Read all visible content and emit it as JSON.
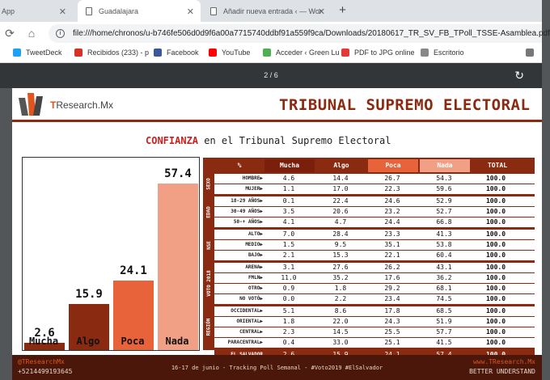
{
  "browser": {
    "tabs": [
      {
        "title": "App"
      },
      {
        "title": "Guadalajara"
      },
      {
        "title": "Añadir nueva entrada ‹ — Wor"
      }
    ],
    "url": "file:///home/chronos/u-b746fe506d0d9f6a00a7715740ddbf91a559f9ca/Downloads/20180617_TR_SV_FB_TPoll_TSSE-Asamblea.pdf",
    "bookmarks": [
      {
        "label": "TweetDeck",
        "color": "#1da1f2"
      },
      {
        "label": "Recibidos (233) - p",
        "color": "#d93025"
      },
      {
        "label": "Facebook",
        "color": "#3b5998"
      },
      {
        "label": "YouTube",
        "color": "#ff0000"
      },
      {
        "label": "Acceder ‹ Green Lu",
        "color": "#4caf50"
      },
      {
        "label": "PDF to JPG online",
        "color": "#e53935"
      },
      {
        "label": "Escritorio",
        "color": "#888888"
      }
    ]
  },
  "pdf": {
    "page_indicator": "2 / 6"
  },
  "slide": {
    "logo_text_a": "T",
    "logo_text_b": "Research.Mx",
    "header_title": "TRIBUNAL SUPREMO ELECTORAL",
    "subtitle_highlight": "CONFIANZA",
    "subtitle_rest": " en el Tribunal Supremo Electoral",
    "footer_left1": "@TResearchMx",
    "footer_left2": "+5214499193645",
    "footer_center": "16-17 de junio - Tracking Poll Semanal - #Voto2019 #ElSalvador",
    "footer_right1": "www.TResearch.Mx",
    "footer_right2": "BETTER UNDERSTAND"
  },
  "chart_data": {
    "type": "bar",
    "categories": [
      "Mucha",
      "Algo",
      "Poca",
      "Nada"
    ],
    "values": [
      2.6,
      15.9,
      24.1,
      57.4
    ],
    "colors": [
      "#8a2a10",
      "#8a2a10",
      "#e8623a",
      "#f2a085"
    ],
    "ylim": [
      0,
      60
    ]
  },
  "table": {
    "headers": [
      "%",
      "Mucha",
      "Algo",
      "Poca",
      "Nada",
      "TOTAL"
    ],
    "header_colors": [
      "#8a2a10",
      "#7a1f0b",
      "#8a2a10",
      "#e8623a",
      "#f2a085",
      "#8a2a10"
    ],
    "groups": [
      {
        "label": "SEXO",
        "rows": [
          {
            "label": "HOMBRE▶",
            "v": [
              "4.6",
              "14.4",
              "26.7",
              "54.3",
              "100.0"
            ]
          },
          {
            "label": "MUJER▶",
            "v": [
              "1.1",
              "17.0",
              "22.3",
              "59.6",
              "100.0"
            ]
          }
        ]
      },
      {
        "label": "EDAD",
        "rows": [
          {
            "label": "18-29 AÑOS▶",
            "v": [
              "0.1",
              "22.4",
              "24.6",
              "52.9",
              "100.0"
            ]
          },
          {
            "label": "30-49 AÑOS▶",
            "v": [
              "3.5",
              "20.6",
              "23.2",
              "52.7",
              "100.0"
            ]
          },
          {
            "label": "50-+ AÑOS▶",
            "v": [
              "4.1",
              "4.7",
              "24.4",
              "66.8",
              "100.0"
            ]
          }
        ]
      },
      {
        "label": "NSE",
        "rows": [
          {
            "label": "ALTO▶",
            "v": [
              "7.0",
              "28.4",
              "23.3",
              "41.3",
              "100.0"
            ]
          },
          {
            "label": "MEDIO▶",
            "v": [
              "1.5",
              "9.5",
              "35.1",
              "53.8",
              "100.0"
            ]
          },
          {
            "label": "BAJO▶",
            "v": [
              "2.1",
              "15.3",
              "22.1",
              "60.4",
              "100.0"
            ]
          }
        ]
      },
      {
        "label": "VOTO 2018",
        "rows": [
          {
            "label": "ARENA▶",
            "v": [
              "3.1",
              "27.6",
              "26.2",
              "43.1",
              "100.0"
            ]
          },
          {
            "label": "FMLN▶",
            "v": [
              "11.0",
              "35.2",
              "17.6",
              "36.2",
              "100.0"
            ]
          },
          {
            "label": "OTRO▶",
            "v": [
              "0.9",
              "1.8",
              "29.2",
              "68.1",
              "100.0"
            ]
          },
          {
            "label": "NO VOTÓ▶",
            "v": [
              "0.0",
              "2.2",
              "23.4",
              "74.5",
              "100.0"
            ]
          }
        ]
      },
      {
        "label": "REGIÓN",
        "rows": [
          {
            "label": "OCCIDENTAL▶",
            "v": [
              "5.1",
              "8.6",
              "17.8",
              "68.5",
              "100.0"
            ]
          },
          {
            "label": "ORIENTAL▶",
            "v": [
              "1.8",
              "22.0",
              "24.3",
              "51.9",
              "100.0"
            ]
          },
          {
            "label": "CENTRAL▶",
            "v": [
              "2.3",
              "14.5",
              "25.5",
              "57.7",
              "100.0"
            ]
          },
          {
            "label": "PARACENTRAL▶",
            "v": [
              "0.4",
              "33.0",
              "25.1",
              "41.5",
              "100.0"
            ]
          }
        ]
      }
    ],
    "total_row": {
      "label": "EL SALVADOR",
      "v": [
        "2.6",
        "15.9",
        "24.1",
        "57.4",
        "100.0"
      ]
    }
  }
}
